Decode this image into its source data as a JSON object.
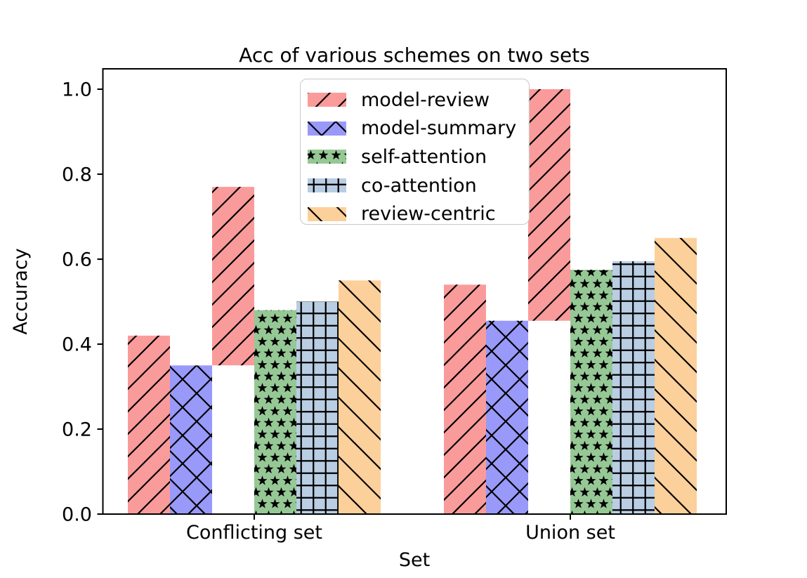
{
  "chart_data": {
    "type": "bar",
    "title": "Acc of various schemes on two sets",
    "xlabel": "Set",
    "ylabel": "Accuracy",
    "categories": [
      "Conflicting set",
      "Union set"
    ],
    "ylim": [
      0,
      1.05
    ],
    "ytick_labels": [
      "0.0",
      "0.2",
      "0.4",
      "0.6",
      "0.8",
      "1.0"
    ],
    "grid": false,
    "legend_position": "upper center inside axes",
    "series": [
      {
        "name": "model-review",
        "color": "#fa9b9b",
        "hatch": "/",
        "values": [
          0.42,
          0.54
        ]
      },
      {
        "name": "model-summary",
        "color": "#9999fa",
        "hatch": "x",
        "values": [
          0.35,
          0.455
        ]
      },
      {
        "name": "self-attention",
        "color": "#96c896",
        "hatch": "*",
        "values": [
          0.48,
          0.575
        ]
      },
      {
        "name": "co-attention",
        "color": "#b9cde3",
        "hatch": "+",
        "values": [
          0.5,
          0.595
        ]
      },
      {
        "name": "review-centric",
        "color": "#fcd09a",
        "hatch": "\\",
        "values": [
          0.55,
          0.65
        ]
      }
    ],
    "stacked_overlay_bars": [
      {
        "category": "Conflicting set",
        "series": "model-review",
        "from": 0.35,
        "to": 0.77
      },
      {
        "category": "Union set",
        "series": "model-review",
        "from": 0.455,
        "to": 1.0
      }
    ],
    "groups": [
      {
        "category": "Conflicting set",
        "bars": [
          {
            "series": 0,
            "from": 0,
            "to": 0.42
          },
          {
            "series": 1,
            "from": 0,
            "to": 0.35
          },
          {
            "series": 0,
            "from": 0.35,
            "to": 0.77
          },
          {
            "series": 2,
            "from": 0,
            "to": 0.48
          },
          {
            "series": 3,
            "from": 0,
            "to": 0.5
          },
          {
            "series": 4,
            "from": 0,
            "to": 0.55
          }
        ]
      },
      {
        "category": "Union set",
        "bars": [
          {
            "series": 0,
            "from": 0,
            "to": 0.54
          },
          {
            "series": 1,
            "from": 0,
            "to": 0.455
          },
          {
            "series": 0,
            "from": 0.455,
            "to": 1.0
          },
          {
            "series": 2,
            "from": 0,
            "to": 0.575
          },
          {
            "series": 3,
            "from": 0,
            "to": 0.595
          },
          {
            "series": 4,
            "from": 0,
            "to": 0.65
          }
        ]
      }
    ]
  }
}
